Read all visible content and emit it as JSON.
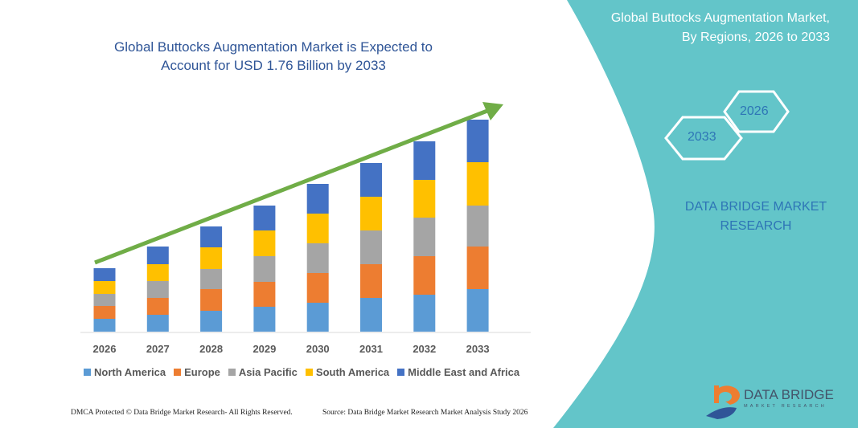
{
  "header": {
    "title": "Global Buttocks Augmentation Market is Expected to Account for USD 1.76 Billion by 2033"
  },
  "side_panel": {
    "title": "Global Buttocks Augmentation Market, By Regions, 2026 to 2033",
    "hex_start": "2026",
    "hex_end": "2033",
    "brand": "DATA BRIDGE MARKET RESEARCH",
    "logo_text": "DATA BRIDGE",
    "logo_sub": "MARKET RESEARCH",
    "color": "#63c5c9"
  },
  "footer": {
    "copyright": "DMCA Protected © Data Bridge Market Research-  All Rights Reserved.",
    "source": "Source: Data Bridge Market Research  Market Analysis Study 2026"
  },
  "chart_data": {
    "type": "bar",
    "stacked": true,
    "categories": [
      "2026",
      "2027",
      "2028",
      "2029",
      "2030",
      "2031",
      "2032",
      "2033"
    ],
    "series": [
      {
        "name": "North America",
        "color": "#5b9bd5",
        "values": [
          16,
          21,
          26,
          31,
          36,
          42,
          46,
          53
        ]
      },
      {
        "name": "Europe",
        "color": "#ed7d31",
        "values": [
          16,
          21,
          27,
          31,
          37,
          42,
          48,
          53
        ]
      },
      {
        "name": "Asia Pacific",
        "color": "#a5a5a5",
        "values": [
          15,
          21,
          25,
          32,
          37,
          42,
          48,
          51
        ]
      },
      {
        "name": "South America",
        "color": "#ffc000",
        "values": [
          16,
          21,
          27,
          32,
          37,
          42,
          47,
          54
        ]
      },
      {
        "name": "Middle East and Africa",
        "color": "#4472c4",
        "values": [
          16,
          22,
          26,
          31,
          37,
          42,
          48,
          53
        ]
      }
    ],
    "trend_arrow": {
      "color": "#70ad47"
    },
    "legend": "bottom",
    "grid": false
  }
}
